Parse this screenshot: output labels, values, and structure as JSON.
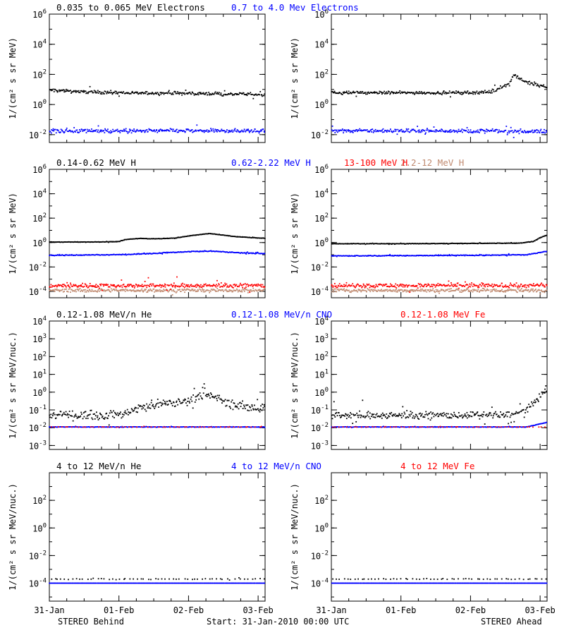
{
  "footer": {
    "left": "STEREO Behind",
    "center": "Start: 31-Jan-2010 00:00 UTC",
    "right": "STEREO Ahead"
  },
  "chart_data": [
    {
      "type": "scatter",
      "row": 1,
      "spacecraft": "STEREO Behind",
      "titles": [
        {
          "text": "0.035 to 0.065 MeV Electrons",
          "color": "#000000"
        },
        {
          "text": "0.7 to 4.0 Mev Electrons",
          "color": "#0000ff"
        }
      ],
      "ylabel": "1/(cm² s sr MeV)",
      "yscale": "log",
      "ylim": [
        0.003,
        1000000
      ],
      "yticks": [
        {
          "v": 1000000,
          "b": "10",
          "e": "6"
        },
        {
          "v": 10000,
          "b": "10",
          "e": "4"
        },
        {
          "v": 100,
          "b": "10",
          "e": "2"
        },
        {
          "v": 1,
          "b": "10",
          "e": "0"
        },
        {
          "v": 0.01,
          "b": "10",
          "e": "-2"
        }
      ],
      "xlim": [
        0,
        3.1
      ],
      "xticks": [],
      "series": [
        {
          "name": "0.035 to 0.065 MeV Electrons",
          "color": "#000000",
          "x": [
            0,
            0.25,
            0.5,
            1.0,
            1.5,
            2.0,
            2.5,
            3.1
          ],
          "y": [
            9,
            8,
            7,
            6,
            5.5,
            5.5,
            5,
            4.5
          ],
          "spread": 0.15
        },
        {
          "name": "0.7 to 4.0 Mev Electrons",
          "color": "#0000ff",
          "x": [
            0,
            1.0,
            2.0,
            3.1
          ],
          "y": [
            0.018,
            0.018,
            0.018,
            0.018
          ],
          "spread": 0.2
        }
      ]
    },
    {
      "type": "scatter",
      "row": 1,
      "spacecraft": "STEREO Ahead",
      "titles": [],
      "ylabel": "1/(cm² s sr MeV)",
      "yscale": "log",
      "ylim": [
        0.003,
        1000000
      ],
      "yticks": [
        {
          "v": 1000000,
          "b": "10",
          "e": "6"
        },
        {
          "v": 10000,
          "b": "10",
          "e": "4"
        },
        {
          "v": 100,
          "b": "10",
          "e": "2"
        },
        {
          "v": 1,
          "b": "10",
          "e": "0"
        },
        {
          "v": 0.01,
          "b": "10",
          "e": "-2"
        }
      ],
      "xlim": [
        0,
        3.1
      ],
      "xticks": [],
      "series": [
        {
          "name": "",
          "color": "#000000",
          "x": [
            0,
            1.0,
            2.0,
            2.3,
            2.45,
            2.55,
            2.62,
            2.8,
            3.0,
            3.1
          ],
          "y": [
            6,
            6,
            6,
            7,
            15,
            25,
            90,
            30,
            18,
            15
          ],
          "spread": 0.15
        },
        {
          "name": "",
          "color": "#0000ff",
          "x": [
            0,
            1.0,
            2.0,
            3.1
          ],
          "y": [
            0.018,
            0.018,
            0.018,
            0.016
          ],
          "spread": 0.2
        }
      ]
    },
    {
      "type": "scatter",
      "row": 2,
      "spacecraft": "STEREO Behind",
      "titles": [
        {
          "text": "0.14-0.62 MeV H",
          "color": "#000000"
        },
        {
          "text": "0.62-2.22 MeV H",
          "color": "#0000ff"
        },
        {
          "text": "2.2-12 MeV H",
          "color": "#c08a70"
        },
        {
          "text": "13-100 MeV H",
          "color": "#ff0000"
        }
      ],
      "ylabel": "1/(cm² s sr MeV)",
      "yscale": "log",
      "ylim": [
        3e-05,
        1000000
      ],
      "yticks": [
        {
          "v": 1000000,
          "b": "10",
          "e": "6"
        },
        {
          "v": 10000,
          "b": "10",
          "e": "4"
        },
        {
          "v": 100,
          "b": "10",
          "e": "2"
        },
        {
          "v": 1,
          "b": "10",
          "e": "0"
        },
        {
          "v": 0.01,
          "b": "10",
          "e": "-2"
        },
        {
          "v": 0.0001,
          "b": "10",
          "e": "-4"
        }
      ],
      "xlim": [
        0,
        3.1
      ],
      "xticks": [],
      "series": [
        {
          "name": "0.14-0.62 MeV H",
          "color": "#000000",
          "x": [
            0,
            0.5,
            1.0,
            1.1,
            1.3,
            1.5,
            1.8,
            2.0,
            2.3,
            2.5,
            2.7,
            3.1
          ],
          "y": [
            1.1,
            1.1,
            1.2,
            1.8,
            2.2,
            2.0,
            2.3,
            3.5,
            5.5,
            4,
            3,
            2.2
          ],
          "spread": 0.03
        },
        {
          "name": "0.62-2.22 MeV H",
          "color": "#0000ff",
          "x": [
            0,
            1.0,
            1.5,
            2.0,
            2.3,
            2.7,
            3.1
          ],
          "y": [
            0.09,
            0.1,
            0.13,
            0.18,
            0.2,
            0.15,
            0.12
          ],
          "spread": 0.05
        },
        {
          "name": "2.2-12 MeV H",
          "color": "#c08a70",
          "x": [
            0,
            3.1
          ],
          "y": [
            0.00012,
            0.00012
          ],
          "spread": 0.2
        },
        {
          "name": "13-100 MeV H",
          "color": "#ff0000",
          "x": [
            0,
            3.1
          ],
          "y": [
            0.0003,
            0.0003
          ],
          "spread": 0.25
        }
      ]
    },
    {
      "type": "scatter",
      "row": 2,
      "spacecraft": "STEREO Ahead",
      "titles": [],
      "ylabel": "1/(cm² s sr MeV)",
      "yscale": "log",
      "ylim": [
        3e-05,
        1000000
      ],
      "yticks": [
        {
          "v": 1000000,
          "b": "10",
          "e": "6"
        },
        {
          "v": 10000,
          "b": "10",
          "e": "4"
        },
        {
          "v": 100,
          "b": "10",
          "e": "2"
        },
        {
          "v": 1,
          "b": "10",
          "e": "0"
        },
        {
          "v": 0.01,
          "b": "10",
          "e": "-2"
        },
        {
          "v": 0.0001,
          "b": "10",
          "e": "-4"
        }
      ],
      "xlim": [
        0,
        3.1
      ],
      "xticks": [],
      "series": [
        {
          "name": "",
          "color": "#000000",
          "x": [
            0,
            1.0,
            2.0,
            2.7,
            2.9,
            3.0,
            3.1
          ],
          "y": [
            0.8,
            0.8,
            0.85,
            0.9,
            1.2,
            2.5,
            4
          ],
          "spread": 0.03
        },
        {
          "name": "",
          "color": "#0000ff",
          "x": [
            0,
            1.0,
            2.0,
            2.8,
            3.0,
            3.1
          ],
          "y": [
            0.08,
            0.085,
            0.09,
            0.1,
            0.15,
            0.2
          ],
          "spread": 0.05
        },
        {
          "name": "",
          "color": "#c08a70",
          "x": [
            0,
            3.1
          ],
          "y": [
            0.00012,
            0.00012
          ],
          "spread": 0.2
        },
        {
          "name": "",
          "color": "#ff0000",
          "x": [
            0,
            3.1
          ],
          "y": [
            0.0003,
            0.0003
          ],
          "spread": 0.25
        }
      ]
    },
    {
      "type": "scatter",
      "row": 3,
      "spacecraft": "STEREO Behind",
      "titles": [
        {
          "text": "0.12-1.08 MeV/n He",
          "color": "#000000"
        },
        {
          "text": "0.12-1.08 MeV/n CNO",
          "color": "#0000ff"
        },
        {
          "text": "0.12-1.08 MeV Fe",
          "color": "#ff0000"
        }
      ],
      "ylabel": "1/(cm² s sr MeV/nuc.)",
      "yscale": "log",
      "ylim": [
        0.0006,
        10000
      ],
      "yticks": [
        {
          "v": 10000,
          "b": "10",
          "e": "4"
        },
        {
          "v": 1000,
          "b": "10",
          "e": "3"
        },
        {
          "v": 100,
          "b": "10",
          "e": "2"
        },
        {
          "v": 10,
          "b": "10",
          "e": "1"
        },
        {
          "v": 1,
          "b": "10",
          "e": "0"
        },
        {
          "v": 0.1,
          "b": "10",
          "e": "-1"
        },
        {
          "v": 0.01,
          "b": "10",
          "e": "-2"
        },
        {
          "v": 0.001,
          "b": "10",
          "e": "-3"
        }
      ],
      "xlim": [
        0,
        3.1
      ],
      "xticks": [],
      "series": [
        {
          "name": "0.12-1.08 MeV/n He",
          "color": "#000000",
          "x": [
            0,
            1.0,
            1.2,
            1.5,
            1.8,
            2.0,
            2.2,
            2.4,
            2.6,
            3.1
          ],
          "y": [
            0.05,
            0.05,
            0.1,
            0.2,
            0.25,
            0.35,
            0.7,
            0.5,
            0.2,
            0.12
          ],
          "spread": 0.35
        },
        {
          "name": "0.12-1.08 MeV/n CNO",
          "color": "#0000ff",
          "x": [
            0,
            3.1
          ],
          "y": [
            0.011,
            0.011
          ],
          "spread": 0.02
        },
        {
          "name": "0.12-1.08 MeV Fe",
          "color": "#ff0000",
          "x": [
            0,
            3.1
          ],
          "y": [
            0.011,
            0.011
          ],
          "spread": 0.02,
          "sparse": true
        }
      ]
    },
    {
      "type": "scatter",
      "row": 3,
      "spacecraft": "STEREO Ahead",
      "titles": [],
      "ylabel": "1/(cm² s sr MeV/nuc.)",
      "yscale": "log",
      "ylim": [
        0.0006,
        10000
      ],
      "yticks": [
        {
          "v": 10000,
          "b": "10",
          "e": "4"
        },
        {
          "v": 1000,
          "b": "10",
          "e": "3"
        },
        {
          "v": 100,
          "b": "10",
          "e": "2"
        },
        {
          "v": 10,
          "b": "10",
          "e": "1"
        },
        {
          "v": 1,
          "b": "10",
          "e": "0"
        },
        {
          "v": 0.1,
          "b": "10",
          "e": "-1"
        },
        {
          "v": 0.01,
          "b": "10",
          "e": "-2"
        },
        {
          "v": 0.001,
          "b": "10",
          "e": "-3"
        }
      ],
      "xlim": [
        0,
        3.1
      ],
      "xticks": [],
      "series": [
        {
          "name": "",
          "color": "#000000",
          "x": [
            0,
            2.6,
            2.8,
            2.9,
            3.0,
            3.1
          ],
          "y": [
            0.05,
            0.05,
            0.1,
            0.2,
            0.6,
            1.5
          ],
          "spread": 0.3
        },
        {
          "name": "",
          "color": "#0000ff",
          "x": [
            0,
            2.8,
            3.1
          ],
          "y": [
            0.011,
            0.011,
            0.02
          ],
          "spread": 0.02
        },
        {
          "name": "",
          "color": "#ff0000",
          "x": [
            0,
            3.1
          ],
          "y": [
            0.011,
            0.011
          ],
          "spread": 0.02,
          "sparse": true
        }
      ]
    },
    {
      "type": "scatter",
      "row": 4,
      "spacecraft": "STEREO Behind",
      "titles": [
        {
          "text": "4 to 12 MeV/n He",
          "color": "#000000"
        },
        {
          "text": "4 to 12 MeV/n CNO",
          "color": "#0000ff"
        },
        {
          "text": "4 to 12 MeV Fe",
          "color": "#ff0000"
        }
      ],
      "ylabel": "1/(cm² s sr MeV/nuc.)",
      "yscale": "log",
      "ylim": [
        5e-06,
        10000
      ],
      "yticks": [
        {
          "v": 100,
          "b": "10",
          "e": "2"
        },
        {
          "v": 1,
          "b": "10",
          "e": "0"
        },
        {
          "v": 0.01,
          "b": "10",
          "e": "-2"
        },
        {
          "v": 0.0001,
          "b": "10",
          "e": "-4"
        }
      ],
      "xlim": [
        0,
        3.1
      ],
      "xticks": [
        "31-Jan",
        "01-Feb",
        "02-Feb",
        "03-Feb"
      ],
      "series": [
        {
          "name": "4 to 12 MeV/n He",
          "color": "#000000",
          "x": [
            0,
            3.1
          ],
          "y": [
            0.0002,
            0.0002
          ],
          "spread": 0.05,
          "sparse": true
        },
        {
          "name": "4 to 12 MeV/n CNO",
          "color": "#0000ff",
          "x": [
            0,
            3.1
          ],
          "y": [
            0.0001,
            0.0001
          ],
          "spread": 0.0
        }
      ]
    },
    {
      "type": "scatter",
      "row": 4,
      "spacecraft": "STEREO Ahead",
      "titles": [],
      "ylabel": "1/(cm² s sr MeV/nuc.)",
      "yscale": "log",
      "ylim": [
        5e-06,
        10000
      ],
      "yticks": [
        {
          "v": 100,
          "b": "10",
          "e": "2"
        },
        {
          "v": 1,
          "b": "10",
          "e": "0"
        },
        {
          "v": 0.01,
          "b": "10",
          "e": "-2"
        },
        {
          "v": 0.0001,
          "b": "10",
          "e": "-4"
        }
      ],
      "xlim": [
        0,
        3.1
      ],
      "xticks": [
        "31-Jan",
        "01-Feb",
        "02-Feb",
        "03-Feb"
      ],
      "series": [
        {
          "name": "",
          "color": "#000000",
          "x": [
            0,
            3.1
          ],
          "y": [
            0.0002,
            0.0002
          ],
          "spread": 0.05,
          "sparse": true
        },
        {
          "name": "",
          "color": "#0000ff",
          "x": [
            0,
            3.1
          ],
          "y": [
            0.0001,
            0.0001
          ],
          "spread": 0.0
        }
      ]
    }
  ]
}
